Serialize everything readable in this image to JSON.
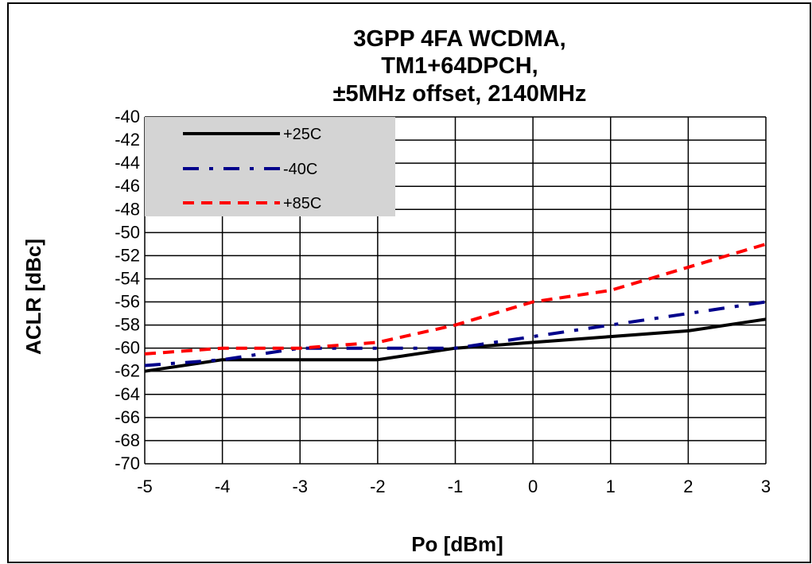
{
  "chart_data": {
    "type": "line",
    "title_lines": [
      "3GPP 4FA WCDMA,",
      "TM1+64DPCH,",
      "±5MHz offset, 2140MHz"
    ],
    "xlabel": "Po [dBm]",
    "ylabel": "ACLR [dBc]",
    "xlim": [
      -5,
      3
    ],
    "ylim": [
      -70,
      -40
    ],
    "x_ticks": [
      "-5",
      "-4",
      "-3",
      "-2",
      "-1",
      "0",
      "1",
      "2",
      "3"
    ],
    "y_ticks": [
      "-40",
      "-42",
      "-44",
      "-46",
      "-48",
      "-50",
      "-52",
      "-54",
      "-56",
      "-58",
      "-60",
      "-62",
      "-64",
      "-66",
      "-68",
      "-70"
    ],
    "grid": true,
    "legend_position": "top-left",
    "series": [
      {
        "name": "+25C",
        "color": "#000000",
        "style": "solid",
        "x": [
          -5,
          -4,
          -3,
          -2,
          -1,
          0,
          1,
          2,
          3
        ],
        "values": [
          -62,
          -61,
          -61,
          -61,
          -60,
          -59.5,
          -59,
          -58.5,
          -57.5
        ]
      },
      {
        "name": "-40C",
        "color": "#00008B",
        "style": "dashdot",
        "x": [
          -5,
          -4,
          -3,
          -2,
          -1,
          0,
          1,
          2,
          3
        ],
        "values": [
          -61.5,
          -61,
          -60,
          -60,
          -60,
          -59,
          -58,
          -57,
          -56
        ]
      },
      {
        "name": "+85C",
        "color": "#FF0000",
        "style": "dashed",
        "x": [
          -5,
          -4,
          -3,
          -2,
          -1,
          0,
          1,
          2,
          3
        ],
        "values": [
          -60.5,
          -60,
          -60,
          -59.5,
          -58,
          -56,
          -55,
          -53,
          -51
        ]
      }
    ]
  }
}
